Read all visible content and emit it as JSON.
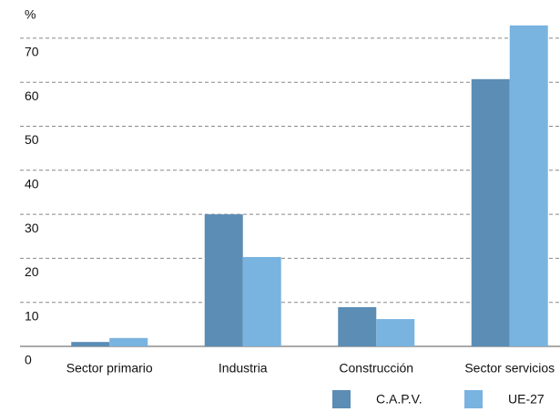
{
  "chart_data": {
    "type": "bar",
    "ylabel": "%",
    "categories": [
      "Sector primario",
      "Industria",
      "Construcción",
      "Sector servicios"
    ],
    "series": [
      {
        "name": "C.A.P.V.",
        "color": "#5b8db5",
        "values": [
          1.0,
          30.0,
          8.9,
          60.7
        ]
      },
      {
        "name": "UE-27",
        "color": "#79b3e0",
        "values": [
          1.9,
          20.3,
          6.2,
          72.9
        ]
      }
    ],
    "ylim": [
      0,
      75
    ],
    "yticks": [
      0,
      10,
      20,
      30,
      40,
      50,
      60,
      70
    ],
    "grid": true
  }
}
